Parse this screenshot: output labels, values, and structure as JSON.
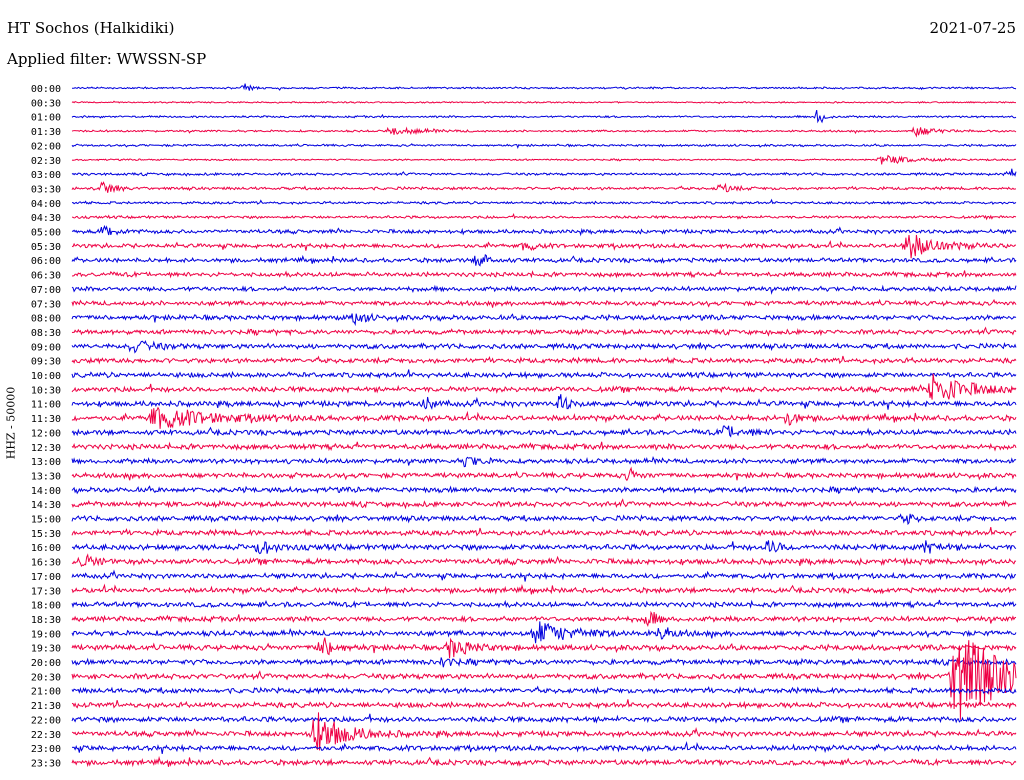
{
  "header": {
    "station": "HT Sochos (Halkidiki)",
    "date": "2021-07-25",
    "filter": "Applied filter: WWSSN-SP"
  },
  "chart_data": {
    "type": "line",
    "title": "HT Sochos (Halkidiki)",
    "ylabel": "HHZ - 50000",
    "xlabel": "",
    "row_interval_minutes": 30,
    "row_labels": [
      "00:00",
      "00:30",
      "01:00",
      "01:30",
      "02:00",
      "02:30",
      "03:00",
      "03:30",
      "04:00",
      "04:30",
      "05:00",
      "05:30",
      "06:00",
      "06:30",
      "07:00",
      "07:30",
      "08:00",
      "08:30",
      "09:00",
      "09:30",
      "10:00",
      "10:30",
      "11:00",
      "11:30",
      "12:00",
      "12:30",
      "13:00",
      "13:30",
      "14:00",
      "14:30",
      "15:00",
      "15:30",
      "16:00",
      "16:30",
      "17:00",
      "17:30",
      "18:00",
      "18:30",
      "19:00",
      "19:30",
      "20:00",
      "20:30",
      "21:00",
      "21:30",
      "22:00",
      "22:30",
      "23:00",
      "23:30"
    ],
    "colors": [
      "#0000dd",
      "#ee0044"
    ],
    "noise_levels": [
      1.0,
      0.8,
      1.1,
      1.1,
      1.2,
      0.9,
      1.4,
      1.6,
      1.4,
      1.5,
      2.2,
      2.4,
      2.4,
      2.5,
      2.5,
      2.5,
      2.8,
      2.6,
      2.8,
      2.8,
      2.8,
      2.9,
      3.0,
      3.0,
      2.9,
      3.0,
      2.7,
      2.8,
      2.9,
      2.9,
      2.9,
      2.9,
      3.1,
      3.1,
      2.8,
      2.8,
      2.8,
      2.8,
      2.9,
      3.0,
      2.9,
      3.0,
      2.9,
      2.9,
      3.0,
      2.9,
      2.9,
      2.9
    ],
    "events": [
      {
        "row": "00:00",
        "minute": 5.4,
        "amp": 4,
        "dur": 0.4
      },
      {
        "row": "01:00",
        "minute": 23.6,
        "amp": 9,
        "dur": 0.3
      },
      {
        "row": "01:30",
        "minute": 10.0,
        "amp": 4,
        "dur": 1.5
      },
      {
        "row": "01:30",
        "minute": 26.7,
        "amp": 5,
        "dur": 1.0
      },
      {
        "row": "02:30",
        "minute": 25.6,
        "amp": 5,
        "dur": 1.5
      },
      {
        "row": "03:00",
        "minute": 29.7,
        "amp": 6,
        "dur": 0.4
      },
      {
        "row": "03:30",
        "minute": 0.8,
        "amp": 7,
        "dur": 0.6
      },
      {
        "row": "03:30",
        "minute": 20.5,
        "amp": 5,
        "dur": 0.6
      },
      {
        "row": "05:00",
        "minute": 0.9,
        "amp": 6,
        "dur": 0.6
      },
      {
        "row": "05:30",
        "minute": 14.3,
        "amp": 6,
        "dur": 0.4
      },
      {
        "row": "05:30",
        "minute": 26.4,
        "amp": 14,
        "dur": 1.4
      },
      {
        "row": "06:00",
        "minute": 12.8,
        "amp": 9,
        "dur": 0.5
      },
      {
        "row": "08:00",
        "minute": 8.9,
        "amp": 7,
        "dur": 0.5
      },
      {
        "row": "09:00",
        "minute": 1.8,
        "amp": 6,
        "dur": 1.0
      },
      {
        "row": "10:30",
        "minute": 27.2,
        "amp": 16,
        "dur": 1.8
      },
      {
        "row": "11:00",
        "minute": 11.1,
        "amp": 8,
        "dur": 0.4
      },
      {
        "row": "11:00",
        "minute": 15.4,
        "amp": 9,
        "dur": 0.4
      },
      {
        "row": "11:30",
        "minute": 2.4,
        "amp": 11,
        "dur": 3.0
      },
      {
        "row": "11:30",
        "minute": 22.6,
        "amp": 7,
        "dur": 0.6
      },
      {
        "row": "12:00",
        "minute": 20.6,
        "amp": 6,
        "dur": 1.0
      },
      {
        "row": "13:00",
        "minute": 12.4,
        "amp": 5,
        "dur": 0.7
      },
      {
        "row": "13:30",
        "minute": 17.6,
        "amp": 6,
        "dur": 0.4
      },
      {
        "row": "15:00",
        "minute": 26.4,
        "amp": 5,
        "dur": 0.4
      },
      {
        "row": "16:00",
        "minute": 5.8,
        "amp": 6,
        "dur": 1.0
      },
      {
        "row": "16:00",
        "minute": 22.0,
        "amp": 6,
        "dur": 0.7
      },
      {
        "row": "16:00",
        "minute": 27.0,
        "amp": 5,
        "dur": 0.8
      },
      {
        "row": "16:30",
        "minute": 0.2,
        "amp": 7,
        "dur": 0.6
      },
      {
        "row": "18:30",
        "minute": 18.2,
        "amp": 10,
        "dur": 0.4
      },
      {
        "row": "19:00",
        "minute": 14.6,
        "amp": 12,
        "dur": 1.7
      },
      {
        "row": "19:00",
        "minute": 18.6,
        "amp": 7,
        "dur": 0.6
      },
      {
        "row": "19:30",
        "minute": 7.8,
        "amp": 11,
        "dur": 0.7
      },
      {
        "row": "19:30",
        "minute": 11.9,
        "amp": 10,
        "dur": 1.1
      },
      {
        "row": "20:00",
        "minute": 11.6,
        "amp": 5,
        "dur": 0.6
      },
      {
        "row": "20:30",
        "minute": 27.9,
        "amp": 52,
        "dur": 2.4
      },
      {
        "row": "22:30",
        "minute": 7.6,
        "amp": 22,
        "dur": 1.5
      }
    ]
  }
}
